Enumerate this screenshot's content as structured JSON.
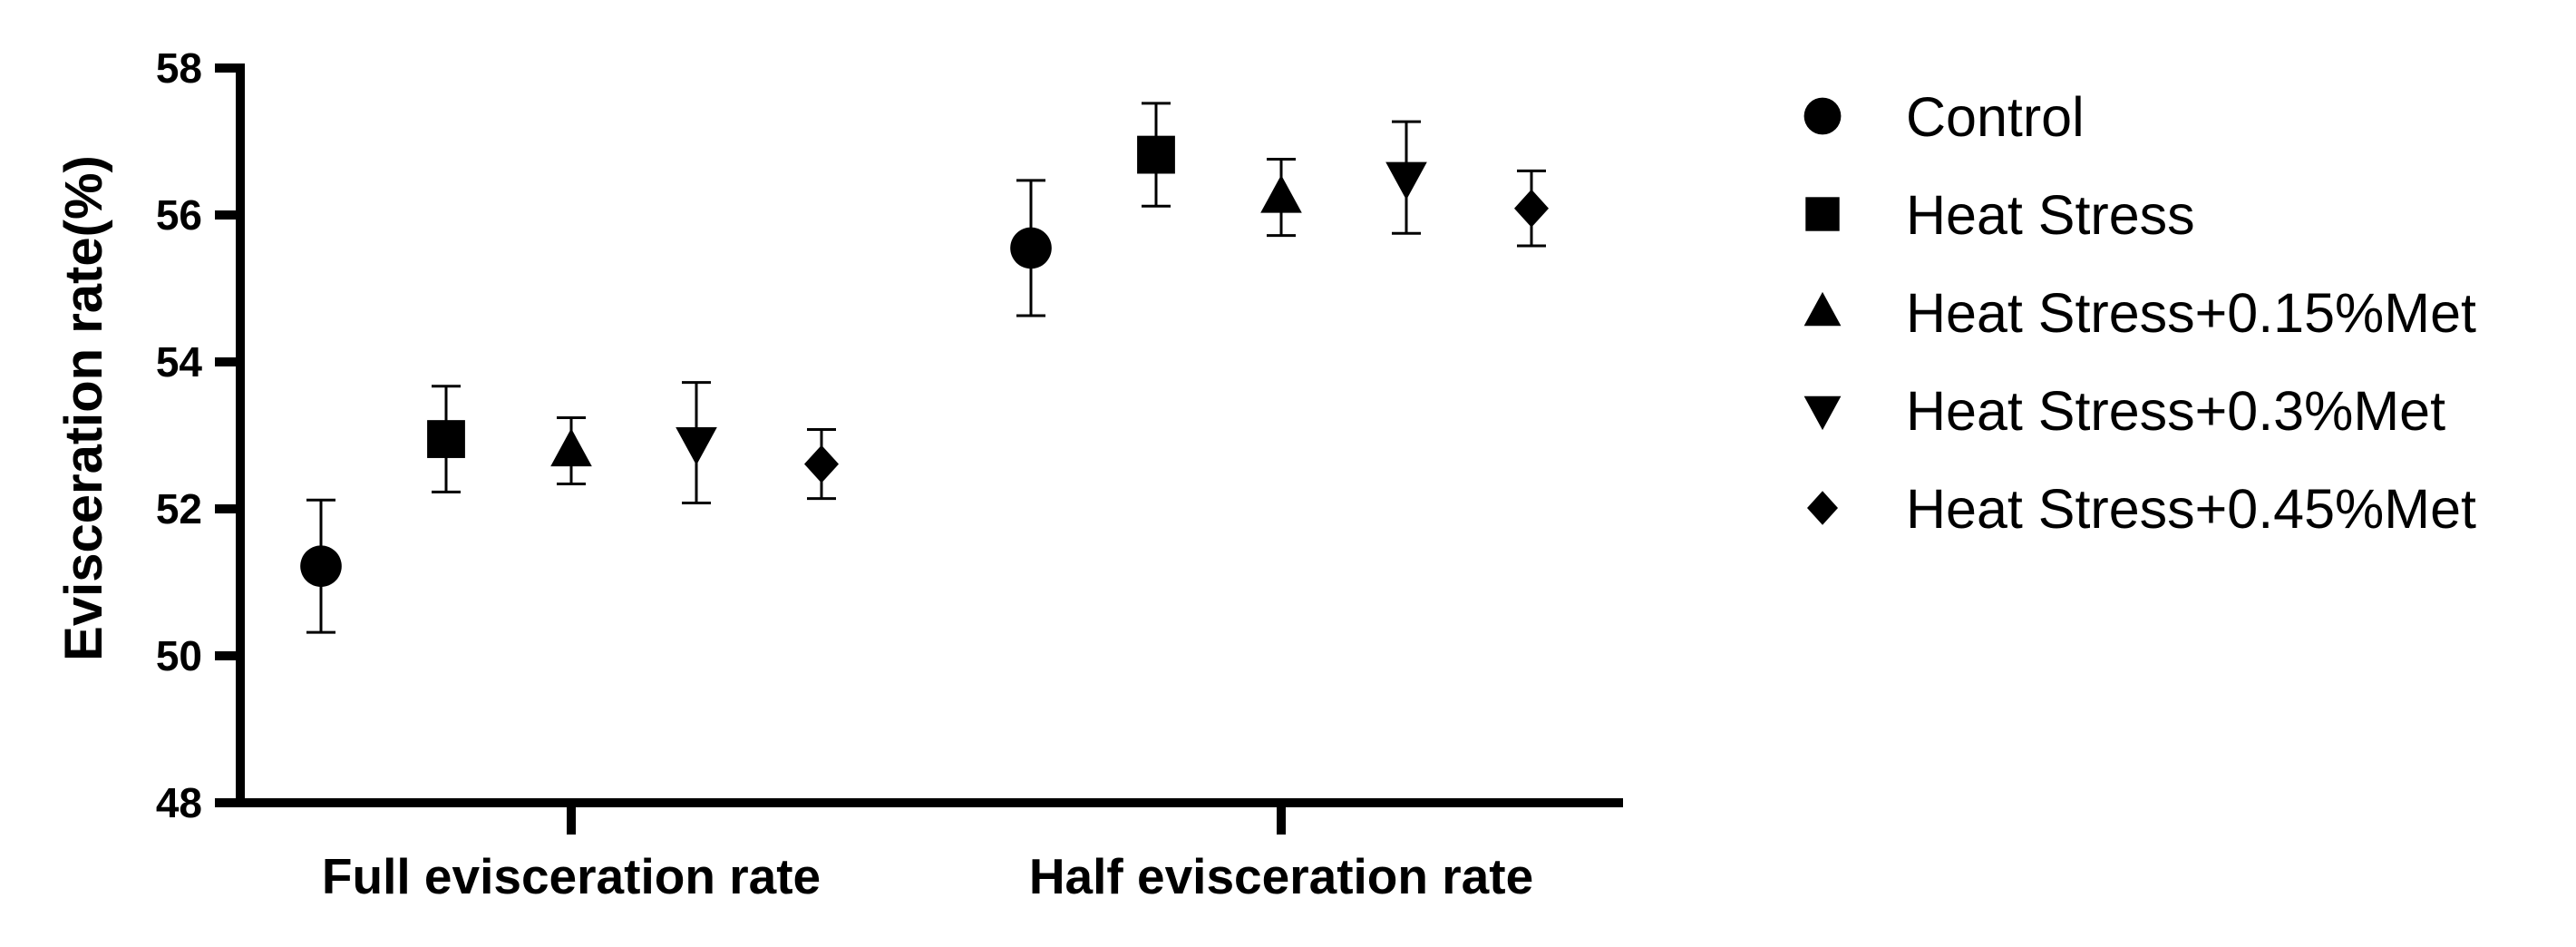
{
  "chart_data": {
    "type": "scatter",
    "title": "",
    "xlabel": "",
    "ylabel": "Evisceration rate(%)",
    "ylim": [
      48,
      58
    ],
    "yticks": [
      "48",
      "50",
      "52",
      "54",
      "56",
      "58"
    ],
    "categories": [
      "Full evisceration rate",
      "Half evisceration rate"
    ],
    "grid": false,
    "legend_position": "right",
    "series": [
      {
        "name": "Control",
        "marker": "circle",
        "values": [
          51.22,
          55.55
        ],
        "errors": [
          0.9,
          0.92
        ]
      },
      {
        "name": "Heat Stress",
        "marker": "square",
        "values": [
          52.95,
          56.82
        ],
        "errors": [
          0.72,
          0.7
        ]
      },
      {
        "name": "Heat Stress+0.15%Met",
        "marker": "triangle-up",
        "values": [
          52.79,
          56.24
        ],
        "errors": [
          0.45,
          0.52
        ]
      },
      {
        "name": "Heat Stress+0.3%Met",
        "marker": "triangle-down",
        "values": [
          52.9,
          56.51
        ],
        "errors": [
          0.82,
          0.76
        ]
      },
      {
        "name": "Heat Stress+0.45%Met",
        "marker": "diamond",
        "values": [
          52.61,
          56.09
        ],
        "errors": [
          0.47,
          0.51
        ]
      }
    ],
    "color": "#000000"
  }
}
